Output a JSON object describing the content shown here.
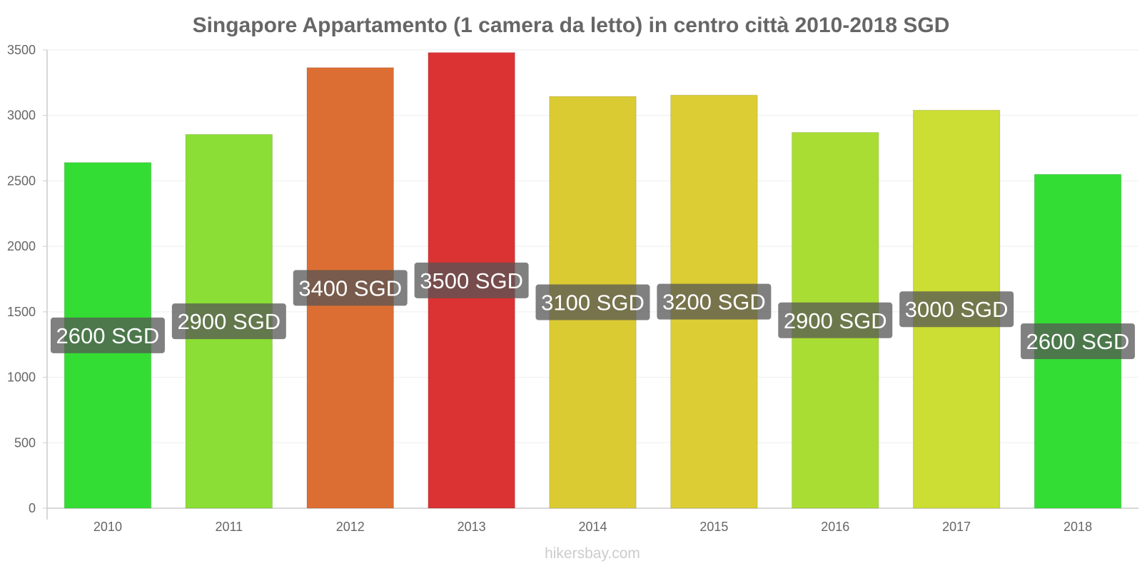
{
  "chart_data": {
    "type": "bar",
    "title": "Singapore Appartamento (1 camera da letto) in centro città 2010-2018 SGD",
    "xlabel": "",
    "ylabel": "",
    "categories": [
      "2010",
      "2011",
      "2012",
      "2013",
      "2014",
      "2015",
      "2016",
      "2017",
      "2018"
    ],
    "values": [
      2640,
      2855,
      3365,
      3480,
      3145,
      3155,
      2870,
      3040,
      2550
    ],
    "data_labels": [
      "2600 SGD",
      "2900 SGD",
      "3400 SGD",
      "3500 SGD",
      "3100 SGD",
      "3200 SGD",
      "2900 SGD",
      "3000 SGD",
      "2600 SGD"
    ],
    "bar_colors": [
      "#33dd33",
      "#8ade35",
      "#dd6e33",
      "#db3333",
      "#dbcb33",
      "#dbcd33",
      "#aadd33",
      "#ccdd33",
      "#33dd33"
    ],
    "ylim": [
      0,
      3500
    ],
    "yticks": [
      0,
      500,
      1000,
      1500,
      2000,
      2500,
      3000,
      3500
    ],
    "grid": true,
    "legend": "none"
  },
  "watermark": "hikersbay.com",
  "colors": {
    "title": "#666666",
    "tick": "#666666",
    "grid": "#eeeeee",
    "axis": "#cccccc",
    "label_bg": "#555555",
    "label_text": "#ffffff",
    "watermark": "#cccccc"
  }
}
